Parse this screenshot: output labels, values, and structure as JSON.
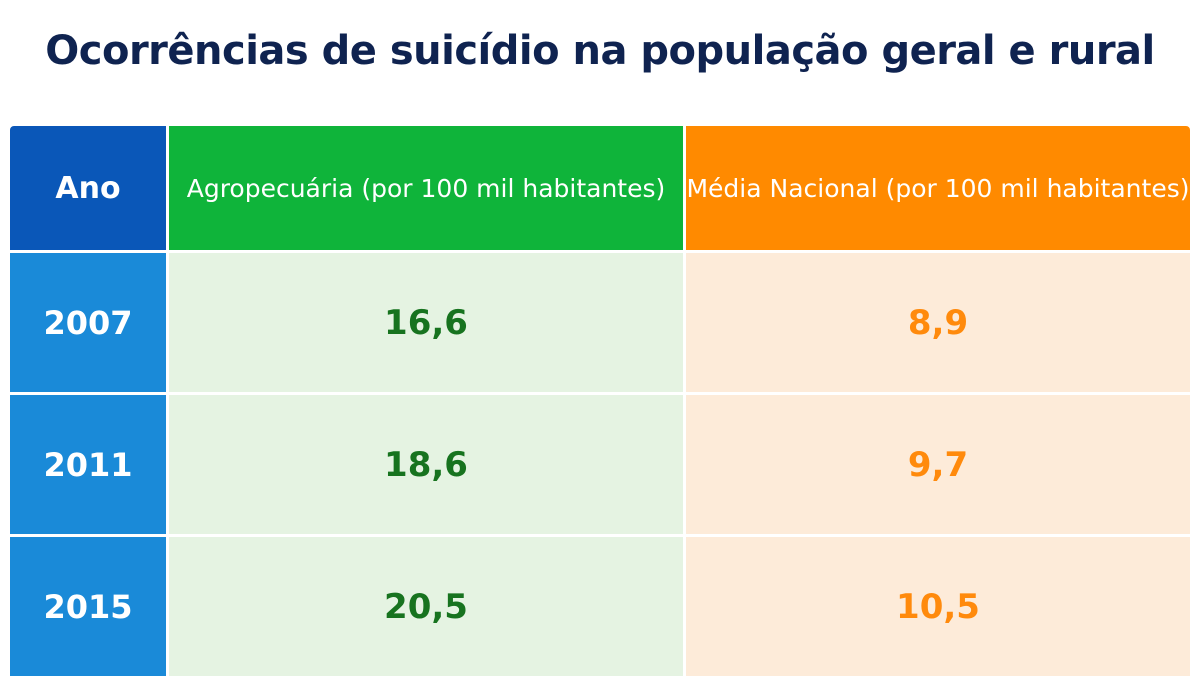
{
  "chart_data": {
    "type": "table",
    "title": "Ocorrências de suicídio na população geral e rural",
    "columns": [
      "Ano",
      "Agropecuária (por 100 mil habitantes)",
      "Média Nacional (por 100 mil habitantes)"
    ],
    "rows": [
      {
        "year": "2007",
        "agro": "16,6",
        "nacional": "8,9"
      },
      {
        "year": "2011",
        "agro": "18,6",
        "nacional": "9,7"
      },
      {
        "year": "2015",
        "agro": "20,5",
        "nacional": "10,5"
      }
    ],
    "colors": {
      "title": "#0f2350",
      "header_year": "#0a57b8",
      "header_agro": "#0fb43a",
      "header_nacional": "#ff8a00",
      "year_cells": "#1a8ad8",
      "agro_cells_bg": "#e5f3e2",
      "agro_values": "#17731f",
      "nacional_cells_bg": "#fdebd9",
      "nacional_values": "#ff8a0c"
    }
  }
}
